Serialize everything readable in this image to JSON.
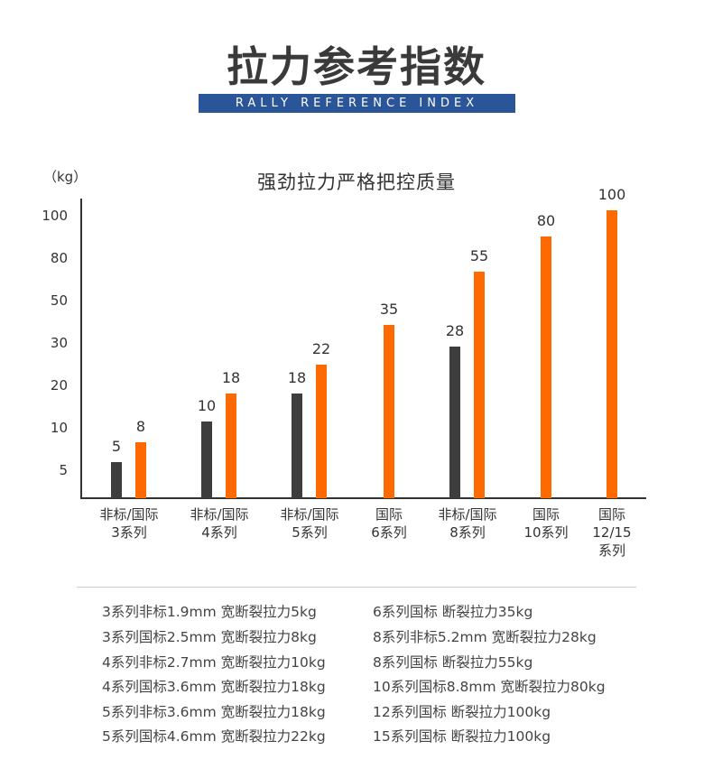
{
  "title": "拉力参考指数",
  "banner": "RALLY REFERENCE INDEX",
  "colors": {
    "non_standard": "#3d3d3d",
    "international": "#ff6a00",
    "banner": "#2b5599"
  },
  "chart_data": {
    "type": "bar",
    "title": "强劲拉力严格把控质量",
    "ylabel": "（kg）",
    "yticks": [
      5,
      10,
      20,
      30,
      50,
      80,
      100
    ],
    "categories": [
      {
        "line1": "非标/国际",
        "line2": "3系列",
        "line3": ""
      },
      {
        "line1": "非标/国际",
        "line2": "4系列",
        "line3": ""
      },
      {
        "line1": "非标/国际",
        "line2": "5系列",
        "line3": ""
      },
      {
        "line1": "国际",
        "line2": "6系列",
        "line3": ""
      },
      {
        "line1": "非标/国际",
        "line2": "8系列",
        "line3": ""
      },
      {
        "line1": "国际",
        "line2": "10系列",
        "line3": ""
      },
      {
        "line1": "国际",
        "line2": "12/15",
        "line3": "系列"
      }
    ],
    "series": [
      {
        "name": "非标",
        "values": [
          5,
          10,
          18,
          null,
          28,
          null,
          null
        ]
      },
      {
        "name": "国际",
        "values": [
          8,
          18,
          22,
          35,
          55,
          80,
          100
        ]
      }
    ]
  },
  "notes_left": [
    "3系列非标1.9mm 宽断裂拉力5kg",
    "3系列国标2.5mm 宽断裂拉力8kg",
    "4系列非标2.7mm 宽断裂拉力10kg",
    "4系列国标3.6mm 宽断裂拉力18kg",
    "5系列非标3.6mm 宽断裂拉力18kg",
    "5系列国标4.6mm 宽断裂拉力22kg"
  ],
  "notes_right": [
    "6系列国标 断裂拉力35kg",
    "8系列非标5.2mm 宽断裂拉力28kg",
    "8系列国标 断裂拉力55kg",
    "10系列国标8.8mm 宽断裂拉力80kg",
    "12系列国标 断裂拉力100kg",
    "15系列国标 断裂拉力100kg"
  ]
}
